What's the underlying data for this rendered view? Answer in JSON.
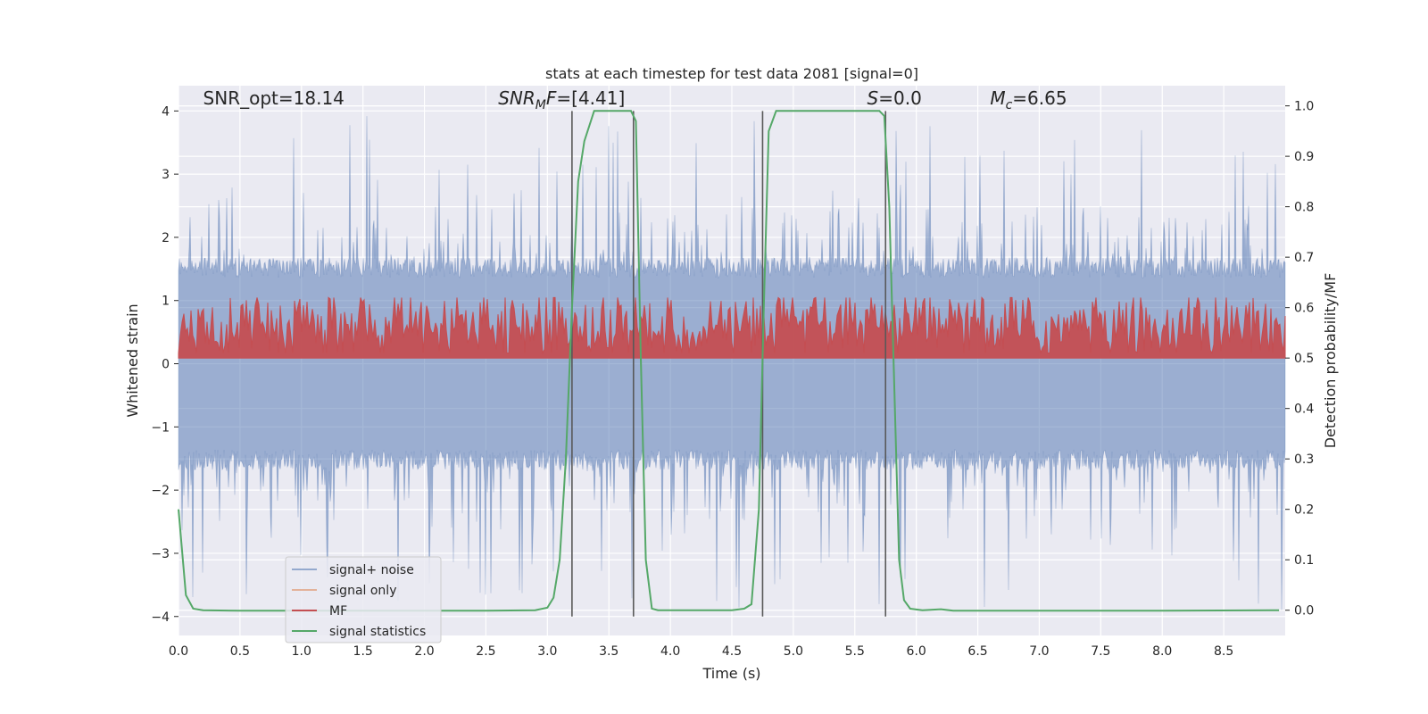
{
  "chart_data": {
    "type": "line",
    "title": "stats at each timestep for test data 2081 [signal=0]",
    "xlabel": "Time (s)",
    "ylabel_left": "Whitened strain",
    "ylabel_right": "Detection probability/MF",
    "xlim": [
      0.0,
      9.0
    ],
    "ylim_left": [
      -4.3,
      4.4
    ],
    "ylim_right": [
      -0.05,
      1.04
    ],
    "x_ticks": [
      "0.0",
      "0.5",
      "1.0",
      "1.5",
      "2.0",
      "2.5",
      "3.0",
      "3.5",
      "4.0",
      "4.5",
      "5.0",
      "5.5",
      "6.0",
      "6.5",
      "7.0",
      "7.5",
      "8.0",
      "8.5"
    ],
    "y_left_ticks": [
      "-4",
      "-3",
      "-2",
      "-1",
      "0",
      "1",
      "2",
      "3",
      "4"
    ],
    "y_right_ticks": [
      "0.0",
      "0.1",
      "0.2",
      "0.3",
      "0.4",
      "0.5",
      "0.6",
      "0.7",
      "0.8",
      "0.9",
      "1.0"
    ],
    "grid": true,
    "legend_position": "lower-left",
    "annotations": [
      {
        "id": "snr-opt",
        "text": "SNR_opt=18.14",
        "x": 0.2,
        "y": 4.1
      },
      {
        "id": "snr-mf",
        "text": "SNR_MF=[4.41]",
        "x": 2.6,
        "y": 4.1
      },
      {
        "id": "s-value",
        "text": "S=0.0",
        "x": 5.6,
        "y": 4.1
      },
      {
        "id": "mc-value",
        "text": "M_c=6.65",
        "x": 6.6,
        "y": 4.1
      }
    ],
    "vertical_lines": [
      3.2,
      3.7,
      4.75,
      5.75
    ],
    "vertical_line_range": [
      -4.0,
      4.0
    ],
    "series": [
      {
        "name": "signal+ noise",
        "color": "#4c72b0",
        "axis": "left",
        "kind": "noise",
        "amplitude": 1.6,
        "spikes_max": 4.0,
        "spikes_min": -3.9
      },
      {
        "name": "signal only",
        "color": "#dd8452",
        "axis": "left",
        "values": []
      },
      {
        "name": "MF",
        "color": "#c44e52",
        "axis": "right",
        "kind": "noise",
        "baseline": 0.5,
        "spread_max": 0.62
      },
      {
        "name": "signal statistics",
        "color": "#55a868",
        "axis": "right",
        "x": [
          0.0,
          0.06,
          0.12,
          0.2,
          0.5,
          1.0,
          2.0,
          2.5,
          2.9,
          3.0,
          3.05,
          3.1,
          3.15,
          3.2,
          3.25,
          3.3,
          3.38,
          3.5,
          3.62,
          3.68,
          3.72,
          3.76,
          3.8,
          3.85,
          3.9,
          4.0,
          4.5,
          4.6,
          4.66,
          4.72,
          4.76,
          4.8,
          4.86,
          4.95,
          5.1,
          5.2,
          5.4,
          5.6,
          5.7,
          5.74,
          5.78,
          5.82,
          5.86,
          5.9,
          5.95,
          6.05,
          6.2,
          6.3,
          7.0,
          8.0,
          8.9,
          8.95
        ],
        "y": [
          0.2,
          0.03,
          0.003,
          0.0,
          -0.001,
          -0.001,
          -0.001,
          -0.001,
          0.0,
          0.005,
          0.025,
          0.1,
          0.3,
          0.6,
          0.85,
          0.93,
          0.99,
          0.99,
          0.99,
          0.99,
          0.97,
          0.5,
          0.1,
          0.003,
          0.0,
          0.0,
          0.0,
          0.003,
          0.012,
          0.2,
          0.6,
          0.95,
          0.99,
          0.99,
          0.99,
          0.99,
          0.99,
          0.99,
          0.99,
          0.98,
          0.8,
          0.45,
          0.1,
          0.02,
          0.003,
          0.0,
          0.002,
          -0.001,
          -0.001,
          -0.001,
          0.0,
          0.0
        ]
      }
    ]
  },
  "legend": {
    "items": [
      {
        "label": "signal+ noise",
        "color": "#4c72b0"
      },
      {
        "label": "signal only",
        "color": "#dd8452"
      },
      {
        "label": "MF",
        "color": "#c44e52"
      },
      {
        "label": "signal statistics",
        "color": "#55a868"
      }
    ]
  }
}
